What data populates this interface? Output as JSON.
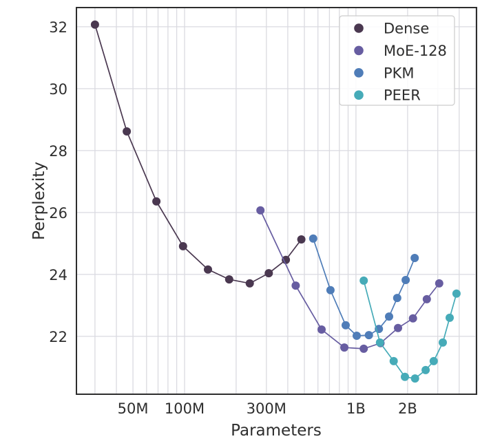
{
  "figure": {
    "background": "#ffffff",
    "text_color": "#2e2e2e",
    "grid_color": "#dadae0",
    "spine_color": "#2d2d2d",
    "legend_border_color": "#cccccc"
  },
  "chart_data": {
    "type": "line",
    "title": "",
    "xlabel": "Parameters",
    "ylabel": "Perplexity",
    "x_scale": "log",
    "xlim": [
      23400000,
      5050000000
    ],
    "ylim": [
      20.13,
      32.62
    ],
    "grid": true,
    "legend_position": "upper-right",
    "x_ticks": [
      {
        "value": 50000000,
        "label": "50M"
      },
      {
        "value": 100000000,
        "label": "100M"
      },
      {
        "value": 300000000,
        "label": "300M"
      },
      {
        "value": 1000000000,
        "label": "1B"
      },
      {
        "value": 2000000000,
        "label": "2B"
      }
    ],
    "x_gridlines": [
      30000000,
      40000000,
      50000000,
      60000000,
      70000000,
      80000000,
      90000000,
      100000000,
      200000000,
      300000000,
      400000000,
      500000000,
      600000000,
      700000000,
      800000000,
      900000000,
      1000000000,
      2000000000,
      3000000000,
      4000000000,
      5000000000
    ],
    "y_ticks": [
      22,
      24,
      26,
      28,
      30,
      32
    ],
    "series": [
      {
        "name": "Dense",
        "color": "#4a3850",
        "points": [
          [
            30000000,
            32.07
          ],
          [
            46000000,
            28.62
          ],
          [
            68500000,
            26.36
          ],
          [
            98000000,
            24.91
          ],
          [
            137000000,
            24.16
          ],
          [
            182000000,
            23.84
          ],
          [
            240000000,
            23.71
          ],
          [
            310000000,
            24.04
          ],
          [
            390000000,
            24.47
          ],
          [
            480000000,
            25.13
          ]
        ]
      },
      {
        "name": "MoE-128",
        "color": "#675da1",
        "points": [
          [
            277000000,
            26.07
          ],
          [
            445000000,
            23.64
          ],
          [
            630000000,
            22.22
          ],
          [
            855000000,
            21.64
          ],
          [
            1110000000,
            21.6
          ],
          [
            1390000000,
            21.78
          ],
          [
            1760000000,
            22.27
          ],
          [
            2150000000,
            22.58
          ],
          [
            2590000000,
            23.2
          ],
          [
            3060000000,
            23.71
          ]
        ]
      },
      {
        "name": "PKM",
        "color": "#4f7db8",
        "points": [
          [
            563000000,
            25.16
          ],
          [
            710000000,
            23.49
          ],
          [
            871000000,
            22.36
          ],
          [
            1010000000,
            22.02
          ],
          [
            1190000000,
            22.04
          ],
          [
            1360000000,
            22.24
          ],
          [
            1560000000,
            22.64
          ],
          [
            1740000000,
            23.24
          ],
          [
            1950000000,
            23.82
          ],
          [
            2200000000,
            24.53
          ]
        ]
      },
      {
        "name": "PEER",
        "color": "#46abb8",
        "points": [
          [
            1110000000,
            23.8
          ],
          [
            1380000000,
            21.8
          ],
          [
            1660000000,
            21.2
          ],
          [
            1930000000,
            20.69
          ],
          [
            2210000000,
            20.64
          ],
          [
            2550000000,
            20.91
          ],
          [
            2840000000,
            21.2
          ],
          [
            3210000000,
            21.8
          ],
          [
            3520000000,
            22.6
          ],
          [
            3860000000,
            23.38
          ]
        ]
      }
    ]
  }
}
